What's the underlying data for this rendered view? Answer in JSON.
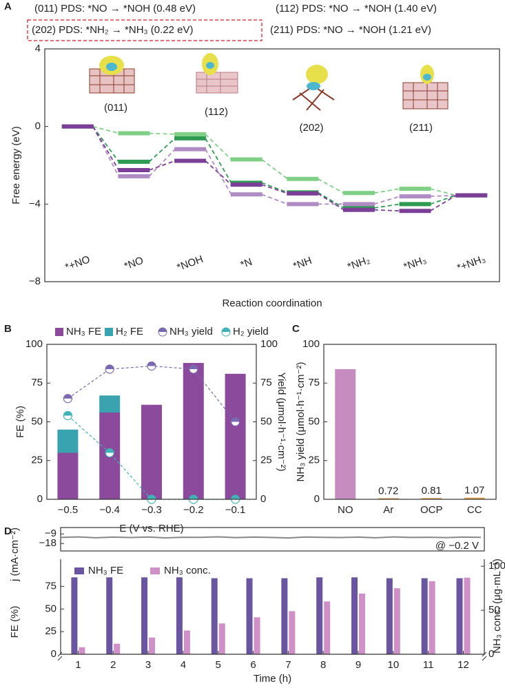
{
  "chart_data": [
    {
      "type": "step",
      "panel": "A",
      "ylabel": "Free energy (eV)",
      "xlabel": "Reaction coordination",
      "categories": [
        "*+NO",
        "*NO",
        "*NOH",
        "*N",
        "*NH",
        "*NH₂",
        "*NH₃",
        "*+NH₃"
      ],
      "ylim": [
        -8,
        4
      ],
      "yticks": [
        {
          "value": -8,
          "label": "−8"
        },
        {
          "value": -4,
          "label": "−4"
        },
        0,
        4
      ],
      "series": [
        {
          "name": "(011) PDS: *NO → *NOH (0.48 eV)",
          "color": "#7b3f98",
          "values": [
            0,
            -2.25,
            -1.77,
            -3.0,
            -3.45,
            -4.3,
            -4.35,
            -3.55
          ]
        },
        {
          "name": "(112) PDS: *NO → *NOH (1.40 eV)",
          "color": "#b08cc4",
          "values": [
            0,
            -2.57,
            -1.17,
            -3.5,
            -4.0,
            -4.0,
            -3.6,
            -3.55
          ]
        },
        {
          "name": "(202) PDS: *NH₂ → *NH₃ (0.22 eV)",
          "color": "#7fcf86",
          "values": [
            0,
            -0.35,
            -0.4,
            -1.7,
            -2.7,
            -3.43,
            -3.21,
            -3.55
          ]
        },
        {
          "name": "(211) PDS: *NO → *NOH (1.21 eV)",
          "color": "#2e9a52",
          "values": [
            0,
            -1.82,
            -0.61,
            -2.9,
            -3.4,
            -4.2,
            -4.0,
            -3.55
          ]
        }
      ],
      "annotations": [
        "(011)",
        "(112)",
        "(202)",
        "(211)"
      ]
    },
    {
      "type": "bar",
      "panel": "B",
      "stacked": true,
      "ylabel": "FE (%)",
      "y2label": "Yield (μmol·h⁻¹·cm⁻²)",
      "xlabel": "E (V vs. RHE)",
      "categories": [
        "−0.5",
        "−0.4",
        "−0.3",
        "−0.2",
        "−0.1"
      ],
      "ylim": [
        0,
        100
      ],
      "yticks": [
        0,
        25,
        50,
        75,
        100
      ],
      "y2lim": [
        0,
        100
      ],
      "y2ticks": [
        0,
        25,
        50,
        75,
        100
      ],
      "series": [
        {
          "name": "NH₃ FE",
          "color": "#8b4a9c",
          "values": [
            30,
            56,
            61,
            88,
            81
          ]
        },
        {
          "name": "H₂ FE",
          "color": "#3aa3b0",
          "values": [
            15,
            11,
            0,
            0,
            0
          ]
        },
        {
          "name": "NH₃ yield",
          "color": "#7a68b0",
          "axis": "y2",
          "values": [
            65,
            84,
            86,
            84,
            50
          ]
        },
        {
          "name": "H₂ yield",
          "color": "#3fb3b5",
          "axis": "y2",
          "values": [
            54,
            30,
            0,
            0,
            0
          ]
        }
      ]
    },
    {
      "type": "bar",
      "panel": "C",
      "ylabel": "NH₃ yield (μmol·h⁻¹·cm⁻²)",
      "categories": [
        "NO",
        "Ar",
        "OCP",
        "CC"
      ],
      "values": [
        84,
        0.72,
        0.81,
        1.07
      ],
      "value_labels": [
        null,
        "0.72",
        "0.81",
        "1.07"
      ],
      "colors": [
        "#c68bbf",
        "#e0a050",
        "#e0a050",
        "#e0a050"
      ],
      "ylim": [
        0,
        100
      ],
      "yticks": [
        0,
        25,
        50,
        75,
        100
      ]
    },
    {
      "type": "line",
      "panel": "D",
      "ylabel": "j (mA·cm⁻²)",
      "annotation": "@ −0.2 V",
      "color": "#888888",
      "x": [
        0.5,
        1,
        1.5,
        2,
        2.5,
        3,
        3.5,
        4,
        4.5,
        5,
        5.5,
        6,
        6.5,
        7,
        7.5,
        8,
        8.5,
        9,
        9.5,
        10,
        10.5,
        11,
        11.5,
        12,
        12.5
      ],
      "values": [
        -12.3,
        -11.8,
        -12.6,
        -12.0,
        -12.4,
        -11.9,
        -12.7,
        -12.1,
        -12.2,
        -11.7,
        -12.5,
        -12.0,
        -12.3,
        -12.8,
        -11.9,
        -12.2,
        -12.4,
        -12.0,
        -12.6,
        -11.8,
        -12.3,
        -12.1,
        -12.5,
        -12.0,
        -12.2
      ],
      "xlim": [
        0.5,
        12.6
      ],
      "ylim": [
        -25,
        -3
      ],
      "yticks": [
        {
          "value": -9,
          "label": "−9"
        },
        {
          "value": -18,
          "label": "−18"
        }
      ]
    },
    {
      "type": "bar",
      "ylabel": "FE (%)",
      "y2label": "NH₃ conc. (μg·mL⁻¹)",
      "xlabel": "Time (h)",
      "x": [
        1,
        2,
        3,
        4,
        5,
        6,
        7,
        8,
        9,
        10,
        11,
        12
      ],
      "xlim": [
        0.5,
        12.6
      ],
      "xticks": [
        1,
        2,
        3,
        4,
        5,
        6,
        7,
        8,
        9,
        10,
        11,
        12
      ],
      "ylim": [
        0,
        105
      ],
      "yticks": [
        0,
        25,
        50,
        75
      ],
      "y2lim": [
        0,
        108
      ],
      "y2ticks": [
        0,
        50,
        100
      ],
      "series": [
        {
          "name": "NH₃ FE",
          "color": "#6a55a0",
          "values": [
            85,
            85,
            85,
            85,
            84,
            84,
            84,
            85,
            85,
            84,
            84,
            84
          ]
        },
        {
          "name": "NH₃ conc.",
          "color": "#cf8fc7",
          "axis": "y2",
          "values": [
            8,
            12,
            19,
            27,
            35,
            42,
            49,
            60,
            69,
            75,
            83,
            87
          ]
        }
      ]
    }
  ]
}
